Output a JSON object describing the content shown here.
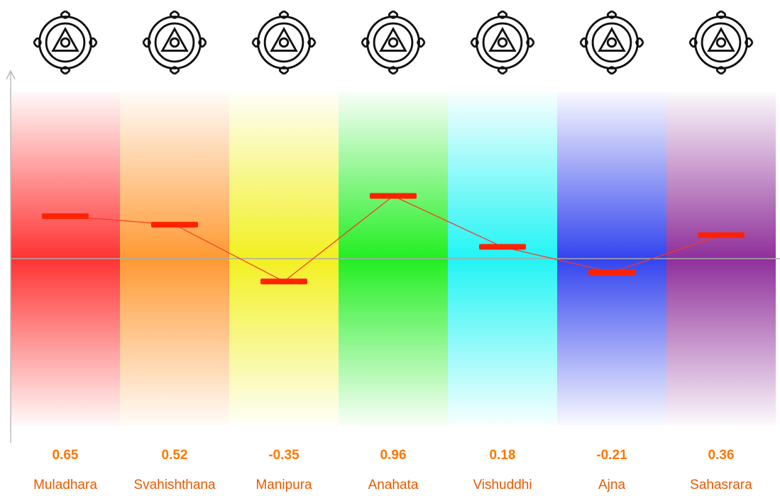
{
  "chart_data": {
    "type": "line",
    "categories": [
      "Muladhara",
      "Svahishthana",
      "Manipura",
      "Anahata",
      "Vishuddhi",
      "Ajna",
      "Sahasrara"
    ],
    "values": [
      0.65,
      0.52,
      -0.35,
      0.96,
      0.18,
      -0.21,
      0.36
    ],
    "band_colors": [
      "#ff3333",
      "#ff9933",
      "#f2f020",
      "#22ee22",
      "#22f4f4",
      "#3344ee",
      "#8f2f9a"
    ],
    "color": "#ff2200",
    "line_color": "#ff3322",
    "label_color": "#ff7700",
    "ylim": [
      -2.8,
      2.8
    ]
  }
}
